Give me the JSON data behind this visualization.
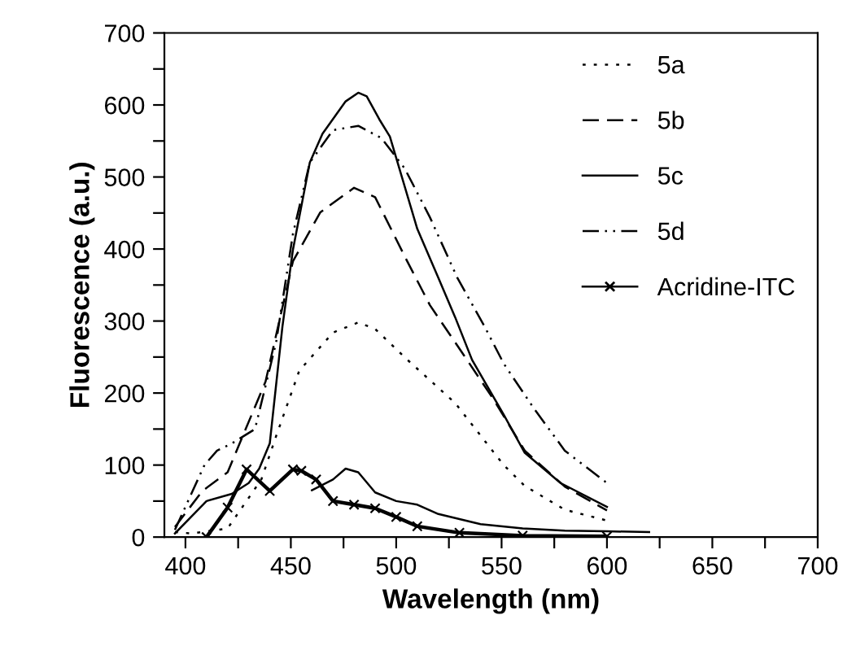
{
  "chart_data": {
    "type": "line",
    "xlabel": "Wavelength (nm)",
    "ylabel": "Fluorescence (a.u.)",
    "xlim": [
      390,
      700
    ],
    "ylim": [
      0,
      700
    ],
    "xticks": [
      400,
      {
        "value": 425,
        "label": null
      },
      450,
      {
        "value": 475,
        "label": null
      },
      500,
      {
        "value": 525,
        "label": null
      },
      550,
      {
        "value": 575,
        "label": null
      },
      600,
      {
        "value": 625,
        "label": null
      },
      650,
      {
        "value": 675,
        "label": null
      },
      700
    ],
    "yticks": [
      0,
      {
        "value": 50,
        "label": null
      },
      100,
      {
        "value": 150,
        "label": null
      },
      200,
      {
        "value": 250,
        "label": null
      },
      300,
      {
        "value": 350,
        "label": null
      },
      400,
      {
        "value": 450,
        "label": null
      },
      500,
      {
        "value": 550,
        "label": null
      },
      600,
      {
        "value": 650,
        "label": null
      },
      700
    ],
    "grid": false,
    "legend": "top right",
    "series": [
      {
        "name": "5a",
        "color": "#000000",
        "line_style": "dotted",
        "x": [
          395,
          403,
          420,
          436,
          443,
          454,
          470,
          482,
          490,
          505,
          528,
          551,
          561,
          580,
          600
        ],
        "values": [
          7,
          5,
          12,
          80,
          140,
          231,
          284,
          298,
          289,
          247,
          186,
          100,
          71,
          38,
          23
        ]
      },
      {
        "name": "5b",
        "color": "#000000",
        "line_style": "dashed",
        "x": [
          395,
          408,
          420,
          438,
          451,
          464,
          480,
          490,
          504,
          516,
          532,
          546,
          561,
          580,
          600
        ],
        "values": [
          14,
          64,
          90,
          216,
          383,
          451,
          485,
          472,
          390,
          322,
          253,
          192,
          120,
          70,
          37
        ]
      },
      {
        "name": "5c",
        "color": "#000000",
        "line_style": "solid",
        "x": [
          395,
          410,
          422,
          430,
          435,
          440,
          446,
          451,
          459,
          465,
          476,
          482,
          486,
          492,
          497,
          510,
          520,
          528,
          536,
          551,
          561,
          578,
          600
        ],
        "values": [
          5,
          50,
          60,
          75,
          95,
          130,
          292,
          399,
          520,
          560,
          605,
          617,
          612,
          580,
          556,
          428,
          360,
          305,
          246,
          170,
          117,
          75,
          42
        ]
      },
      {
        "name": "5d",
        "color": "#000000",
        "line_style": "dashdot",
        "x": [
          395,
          409,
          415,
          422,
          433,
          443,
          451,
          459,
          470,
          482,
          493,
          504,
          516,
          529,
          542,
          551,
          565,
          580,
          600
        ],
        "values": [
          10,
          100,
          120,
          130,
          150,
          270,
          421,
          520,
          565,
          571,
          554,
          512,
          444,
          360,
          292,
          241,
          180,
          120,
          75
        ]
      },
      {
        "name": "Acridine-ITC",
        "color": "#000000",
        "line_style": "solid",
        "marker": "cross",
        "x": [
          410,
          420,
          429,
          440,
          451,
          455,
          462,
          470,
          480,
          490,
          500,
          510,
          530,
          560,
          600
        ],
        "values": [
          0,
          41,
          94,
          64,
          94,
          92,
          80,
          50,
          45,
          40,
          28,
          15,
          6,
          2,
          1
        ]
      },
      {
        "color": "#000000",
        "line_style": "solid",
        "x": [
          460,
          470,
          476,
          482,
          490,
          500,
          510,
          520,
          540,
          560,
          580,
          600,
          620
        ],
        "values": [
          65,
          80,
          95,
          90,
          62,
          50,
          45,
          32,
          18,
          12,
          9,
          8,
          7
        ]
      }
    ]
  }
}
